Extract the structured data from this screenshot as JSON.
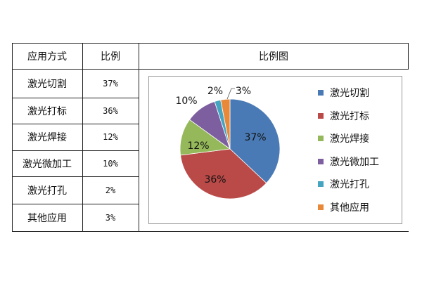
{
  "table": {
    "headers": [
      "应用方式",
      "比例",
      "比例图"
    ],
    "rows": [
      {
        "method": "激光切割",
        "ratio": "37%"
      },
      {
        "method": "激光打标",
        "ratio": "36%"
      },
      {
        "method": "激光焊接",
        "ratio": "12%"
      },
      {
        "method": "激光微加工",
        "ratio": "10%"
      },
      {
        "method": "激光打孔",
        "ratio": "2%"
      },
      {
        "method": "其他应用",
        "ratio": "3%"
      }
    ]
  },
  "chart_data": {
    "type": "pie",
    "title": "",
    "categories": [
      "激光切割",
      "激光打标",
      "激光焊接",
      "激光微加工",
      "激光打孔",
      "其他应用"
    ],
    "values": [
      37,
      36,
      12,
      10,
      2,
      3
    ],
    "labels": [
      "37%",
      "36%",
      "12%",
      "10%",
      "2%",
      "3%"
    ],
    "colors": [
      "#4a7ab5",
      "#b94a48",
      "#94b85a",
      "#7d5fa0",
      "#45a5c0",
      "#e8893a"
    ],
    "legend": "right"
  }
}
